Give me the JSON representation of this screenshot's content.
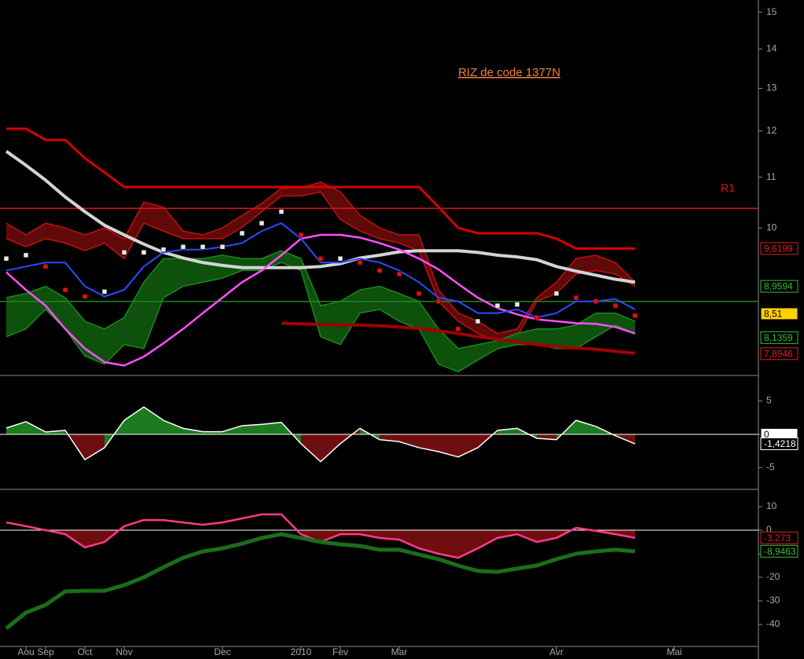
{
  "categories": [
    null,
    "Aou",
    "Sep",
    null,
    "Oct",
    null,
    "Nov",
    null,
    null,
    null,
    null,
    "Dec",
    null,
    null,
    null,
    "2010",
    null,
    "Fev",
    null,
    null,
    "Mar",
    null,
    null,
    null,
    null,
    null,
    null,
    null,
    "Avr",
    null,
    null,
    null,
    null,
    null,
    "Mai",
    null,
    null,
    null,
    null
  ],
  "chart_data": [
    {
      "type": "line",
      "title": "RIZ de code 1377N",
      "log": true,
      "ylim": [
        7.6,
        15.35
      ],
      "yticks": [
        10,
        11,
        12,
        13,
        14,
        15
      ],
      "hlines": [
        {
          "value": 10.375,
          "color": "#e01010",
          "label": "R1"
        },
        {
          "value": 8.71,
          "color": "#1a8a1a"
        }
      ],
      "bands": [
        {
          "color": "#6a0a0a",
          "edge": "#c01010",
          "upper": [
            10.09,
            9.87,
            10.09,
            10.0,
            9.87,
            10.0,
            9.8,
            10.5,
            10.4,
            9.94,
            9.87,
            10.0,
            10.24,
            10.47,
            10.78,
            10.78,
            10.9,
            10.7,
            10.24,
            10.0,
            9.87,
            9.87,
            8.9,
            8.52,
            8.39,
            8.2,
            8.27,
            8.77,
            9.03,
            9.44,
            9.5,
            9.37,
            9.03,
            null,
            null,
            null,
            null,
            null,
            null
          ],
          "lower": [
            9.8,
            9.65,
            9.8,
            9.72,
            9.58,
            9.72,
            9.44,
            10.09,
            9.94,
            9.8,
            9.8,
            9.8,
            10.01,
            10.31,
            10.62,
            10.62,
            10.7,
            10.16,
            9.94,
            9.8,
            9.72,
            9.58,
            8.71,
            8.39,
            8.2,
            8.09,
            8.15,
            8.71,
            8.84,
            9.17,
            9.23,
            9.17,
            8.96,
            null,
            null,
            null,
            null,
            null,
            null
          ]
        },
        {
          "color": "#0e5a0e",
          "edge": "#1a8a1a",
          "upper": [
            8.77,
            8.84,
            8.96,
            8.77,
            8.39,
            8.27,
            8.45,
            9.03,
            9.44,
            9.44,
            9.44,
            9.5,
            9.44,
            9.44,
            9.58,
            9.44,
            8.64,
            8.71,
            8.9,
            8.96,
            8.84,
            8.71,
            8.27,
            7.97,
            8.03,
            8.09,
            8.2,
            8.27,
            8.27,
            8.33,
            8.52,
            8.52,
            8.39,
            null,
            null,
            null,
            null,
            null,
            null
          ],
          "lower": [
            8.15,
            8.27,
            8.58,
            8.27,
            7.86,
            7.74,
            8.03,
            7.97,
            8.77,
            8.96,
            9.03,
            9.1,
            9.23,
            9.23,
            9.37,
            9.23,
            8.15,
            8.03,
            8.52,
            8.58,
            8.39,
            8.27,
            7.74,
            7.63,
            7.8,
            7.97,
            8.03,
            8.03,
            7.97,
            7.97,
            8.15,
            8.33,
            8.2,
            null,
            null,
            null,
            null,
            null,
            null
          ]
        }
      ],
      "series": [
        {
          "color": "#d80000",
          "width": 3,
          "values": [
            12.05,
            12.05,
            11.8,
            11.8,
            11.4,
            11.1,
            10.8,
            10.8,
            10.8,
            10.8,
            10.8,
            10.8,
            10.8,
            10.8,
            10.8,
            10.8,
            10.8,
            10.8,
            10.8,
            10.8,
            10.8,
            10.8,
            10.4,
            10.0,
            9.9,
            9.9,
            9.9,
            9.9,
            9.8,
            9.62,
            9.62,
            9.62,
            9.62,
            null,
            null,
            null,
            null,
            null,
            null
          ]
        },
        {
          "color": "#d4d4d4",
          "width": 4,
          "values": [
            11.55,
            11.25,
            10.94,
            10.6,
            10.31,
            10.05,
            9.87,
            9.7,
            9.55,
            9.45,
            9.37,
            9.32,
            9.28,
            9.28,
            9.28,
            9.28,
            9.3,
            9.35,
            9.45,
            9.5,
            9.56,
            9.58,
            9.58,
            9.58,
            9.55,
            9.5,
            9.47,
            9.42,
            9.3,
            9.22,
            9.15,
            9.08,
            9.03,
            null,
            null,
            null,
            null,
            null,
            null
          ]
        },
        {
          "color": "#ff50ff",
          "width": 2.5,
          "values": [
            9.2,
            8.9,
            8.64,
            8.27,
            7.97,
            7.77,
            7.72,
            7.85,
            8.05,
            8.27,
            8.52,
            8.77,
            9.03,
            9.23,
            9.5,
            9.8,
            9.87,
            9.87,
            9.82,
            9.72,
            9.6,
            9.44,
            9.25,
            9.0,
            8.77,
            8.6,
            8.5,
            8.42,
            8.39,
            8.36,
            8.35,
            8.3,
            8.2,
            null,
            null,
            null,
            null,
            null,
            null
          ]
        },
        {
          "color": "#2a4cff",
          "width": 2,
          "values": [
            9.23,
            9.3,
            9.37,
            9.37,
            8.96,
            8.79,
            8.9,
            9.3,
            9.55,
            9.6,
            9.6,
            9.65,
            9.72,
            9.94,
            10.09,
            9.8,
            9.37,
            9.37,
            9.44,
            9.37,
            9.23,
            9.03,
            8.77,
            8.71,
            8.52,
            8.52,
            8.58,
            8.45,
            8.52,
            8.71,
            8.71,
            8.75,
            8.58,
            null,
            null,
            null,
            null,
            null,
            null
          ]
        },
        {
          "color": "#a00000",
          "width": 4,
          "values": [
            null,
            null,
            null,
            null,
            null,
            null,
            null,
            null,
            null,
            null,
            null,
            null,
            null,
            null,
            8.36,
            8.35,
            8.34,
            8.33,
            8.33,
            8.32,
            8.3,
            8.28,
            8.24,
            8.2,
            8.15,
            8.11,
            8.07,
            8.03,
            8.0,
            7.98,
            7.96,
            7.93,
            7.9,
            null,
            null,
            null,
            null,
            null,
            null
          ]
        }
      ],
      "candles": {
        "up_color": "#e8e8e8",
        "down_color": "#e01010",
        "values": [
          9.44,
          9.5,
          9.3,
          8.9,
          8.79,
          8.87,
          9.55,
          9.55,
          9.6,
          9.65,
          9.65,
          9.65,
          9.9,
          10.09,
          10.31,
          9.87,
          9.44,
          9.44,
          9.37,
          9.23,
          9.17,
          8.84,
          8.71,
          8.27,
          8.39,
          8.64,
          8.66,
          8.45,
          8.84,
          8.77,
          8.71,
          8.64,
          8.48,
          null,
          null,
          null,
          null,
          null,
          null
        ]
      },
      "price_labels": [
        {
          "value": 9.6199,
          "label": "9,6199",
          "color": "#e02020",
          "fill": "#000000"
        },
        {
          "value": 8.9594,
          "label": "8,9594",
          "color": "#30c030",
          "fill": "#000000"
        },
        {
          "value": 8.51,
          "label": "8,51",
          "color": "#000000",
          "fill": "#ffd000"
        },
        {
          "value": 8.1359,
          "label": "8,1359",
          "color": "#30c030",
          "fill": "#000000"
        },
        {
          "value": 7.8946,
          "label": "7,8946",
          "color": "#e02020",
          "fill": "#000000"
        }
      ]
    },
    {
      "type": "area",
      "ylim": [
        -7.9,
        8.6
      ],
      "yticks": [
        5,
        0,
        -5
      ],
      "zero_color": "#ffffff",
      "up_color": "#1e7a1e",
      "down_color": "#6e0e0e",
      "series": [
        {
          "color": "#ffffff",
          "width": 1.5,
          "values": [
            0.94,
            1.9,
            0.35,
            0.6,
            -3.8,
            -2.0,
            2.1,
            4.1,
            2.1,
            0.9,
            0.4,
            0.4,
            1.3,
            1.5,
            1.8,
            -1.4,
            -4.1,
            -1.4,
            0.9,
            -0.8,
            -1.1,
            -2.0,
            -2.6,
            -3.4,
            -2.0,
            0.6,
            0.9,
            -0.6,
            -0.8,
            2.1,
            1.2,
            -0.2,
            -1.42,
            null,
            null,
            null,
            null,
            null,
            null
          ]
        }
      ],
      "price_labels": [
        {
          "value": 0,
          "label": "0",
          "color": "#000000",
          "fill": "#ffffff"
        },
        {
          "value": -1.4218,
          "label": "-1,4218",
          "color": "#ffffff",
          "fill": "#000000"
        }
      ]
    },
    {
      "type": "area",
      "ylim": [
        -49,
        16
      ],
      "yticks": [
        10,
        0,
        -10,
        -20,
        -30,
        -40
      ],
      "zero_color": "#ffffff",
      "down_color": "#6e0e0e",
      "series": [
        {
          "color": "#ff3a8a",
          "width": 2.5,
          "values": [
            3.3,
            1.7,
            0,
            -1.7,
            -7.3,
            -5,
            1.7,
            4.3,
            4.3,
            3.3,
            2.3,
            3.3,
            5,
            6.7,
            6.7,
            -1.7,
            -5,
            -1.7,
            -1.7,
            -3.3,
            -4,
            -7.7,
            -10,
            -11.7,
            -7.7,
            -3.3,
            -1.7,
            -5,
            -3.3,
            1,
            -0.3,
            -1.7,
            -3.27,
            null,
            null,
            null,
            null,
            null,
            null
          ]
        },
        {
          "color": "#1a6e1a",
          "width": 5,
          "values": [
            -41.7,
            -35,
            -31.7,
            -26,
            -25.7,
            -25.7,
            -23.3,
            -20,
            -15.7,
            -11.7,
            -9,
            -7.7,
            -5.7,
            -3.3,
            -1.7,
            -3.3,
            -5,
            -6,
            -6.7,
            -8.3,
            -8.3,
            -10.3,
            -12.3,
            -15,
            -17.3,
            -17.7,
            -16.3,
            -15,
            -12.3,
            -10,
            -9,
            -8.3,
            -8.95,
            null,
            null,
            null,
            null,
            null,
            null
          ]
        }
      ],
      "price_labels": [
        {
          "value": -3.273,
          "label": "-3,273",
          "color": "#e02020",
          "fill": "#000000"
        },
        {
          "value": -8.9463,
          "label": "-8,9463",
          "color": "#30c030",
          "fill": "#000000"
        }
      ]
    }
  ]
}
